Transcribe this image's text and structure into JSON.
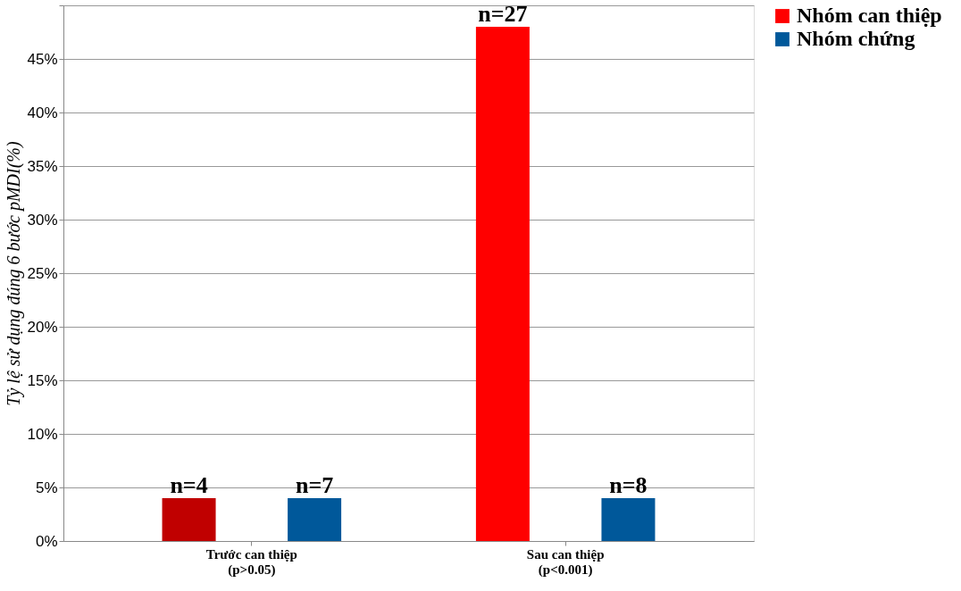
{
  "chart_data": {
    "type": "bar",
    "ylabel": "Tỷ lệ sử dụng đúng 6 bước pMDI(%)",
    "categories": [
      "Trước can thiệp\n(p>0.05)",
      "Sau can thiệp\n(p<0.001)"
    ],
    "series": [
      {
        "name": "Nhóm can thiệp",
        "color": "#ff0000",
        "colors": [
          "#c00000",
          "#ff0000"
        ],
        "values": [
          4,
          48
        ]
      },
      {
        "name": "Nhóm chứng",
        "color": "#00589a",
        "values": [
          4,
          4
        ]
      }
    ],
    "annotations": [
      "n=4",
      "n=27",
      "n=7",
      "n=8"
    ],
    "ylim": [
      0,
      50
    ],
    "yticks": [
      {
        "value": 0,
        "label": "0%"
      },
      {
        "value": 5,
        "label": "5%"
      },
      {
        "value": 10,
        "label": "10%"
      },
      {
        "value": 15,
        "label": "15%"
      },
      {
        "value": 20,
        "label": "20%"
      },
      {
        "value": 25,
        "label": "25%"
      },
      {
        "value": 30,
        "label": "30%"
      },
      {
        "value": 35,
        "label": "35%"
      },
      {
        "value": 40,
        "label": "40%"
      },
      {
        "value": 45,
        "label": "45%"
      },
      {
        "value": 50,
        "label": null
      }
    ],
    "grid": "y",
    "legend": "right"
  }
}
